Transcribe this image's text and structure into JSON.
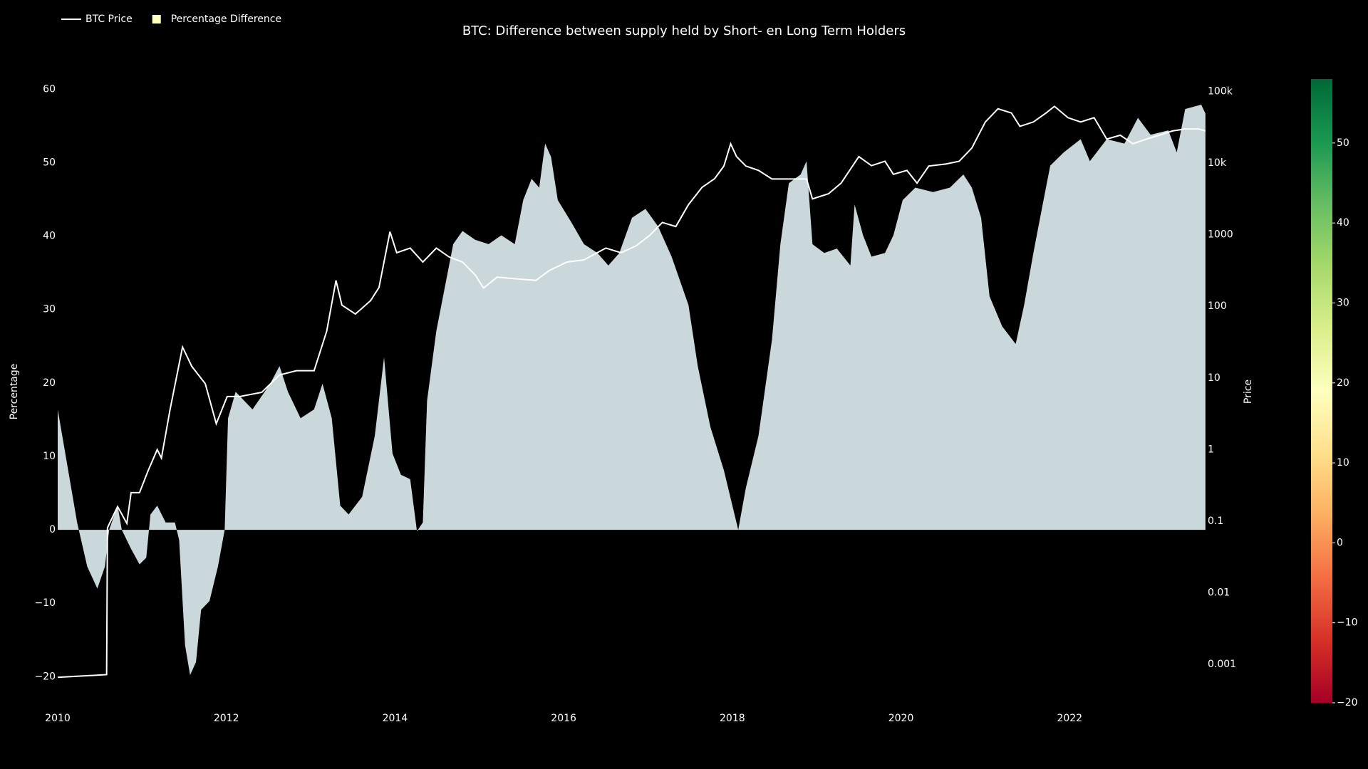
{
  "chart_data": {
    "type": "area_line",
    "title": "BTC: Difference between supply held by Short- en Long Term Holders",
    "y_label": "Percentage",
    "y2_label": "Price",
    "xlim": [
      2010,
      2023.62
    ],
    "xticks": [
      2010,
      2012,
      2014,
      2016,
      2018,
      2020,
      2022
    ],
    "ylim": [
      -22,
      61
    ],
    "yticks": [
      {
        "value": -20,
        "label": "−20"
      },
      {
        "value": -10,
        "label": "−10"
      },
      0,
      10,
      20,
      30,
      40,
      50,
      60
    ],
    "y2lim": [
      0.00042,
      136000
    ],
    "y2scale": "log",
    "y2ticks": [
      0.001,
      0.01,
      0.1,
      1,
      10,
      100,
      1000,
      {
        "value": 10000,
        "label": "10k"
      },
      {
        "value": 100000,
        "label": "100k"
      }
    ],
    "grid": false,
    "legend_position": "top-left",
    "colorbar": {
      "range": [
        -20,
        58
      ],
      "ticks": [
        {
          "value": -20,
          "label": "−20"
        },
        {
          "value": -10,
          "label": "−10"
        },
        0,
        10,
        20,
        30,
        40,
        50
      ],
      "colors": [
        "#a50026",
        "#d73027",
        "#f46d43",
        "#fdae61",
        "#fee08b",
        "#ffffbf",
        "#d9ef8b",
        "#a6d96a",
        "#66bd63",
        "#1a9850",
        "#006837"
      ]
    },
    "series": [
      {
        "name": "Percentage Difference",
        "color": "#d5e4e7",
        "legend_color": "#ffffc0",
        "x": [
          2010.0,
          2010.09,
          2010.23,
          2010.35,
          2010.47,
          2010.56,
          2010.61,
          2010.71,
          2010.76,
          2010.87,
          2010.97,
          2011.05,
          2011.1,
          2011.18,
          2011.28,
          2011.39,
          2011.44,
          2011.51,
          2011.57,
          2011.64,
          2011.7,
          2011.8,
          2011.9,
          2011.98,
          2012.02,
          2012.11,
          2012.31,
          2012.52,
          2012.63,
          2012.73,
          2012.88,
          2013.04,
          2013.14,
          2013.25,
          2013.35,
          2013.45,
          2013.61,
          2013.76,
          2013.87,
          2013.97,
          2014.07,
          2014.18,
          2014.26,
          2014.33,
          2014.38,
          2014.49,
          2014.59,
          2014.69,
          2014.8,
          2014.95,
          2015.11,
          2015.26,
          2015.42,
          2015.52,
          2015.62,
          2015.71,
          2015.78,
          2015.85,
          2015.93,
          2016.09,
          2016.24,
          2016.4,
          2016.53,
          2016.66,
          2016.81,
          2016.97,
          2017.12,
          2017.28,
          2017.48,
          2017.59,
          2017.74,
          2017.9,
          2018.07,
          2018.16,
          2018.31,
          2018.47,
          2018.57,
          2018.67,
          2018.81,
          2018.88,
          2018.95,
          2019.09,
          2019.24,
          2019.4,
          2019.45,
          2019.55,
          2019.65,
          2019.81,
          2019.91,
          2020.02,
          2020.17,
          2020.38,
          2020.58,
          2020.74,
          2020.84,
          2020.95,
          2021.05,
          2021.2,
          2021.36,
          2021.46,
          2021.57,
          2021.67,
          2021.77,
          2021.93,
          2022.13,
          2022.24,
          2022.44,
          2022.65,
          2022.81,
          2022.96,
          2023.17,
          2023.27,
          2023.37,
          2023.56,
          2023.61
        ],
        "values": [
          16.4,
          10.4,
          1,
          -5,
          -8,
          -5,
          0,
          3.3,
          0,
          -2.6,
          -4.7,
          -3.8,
          2.1,
          3.3,
          1,
          1,
          -1.4,
          -15.7,
          -19.8,
          -18,
          -10.9,
          -9.7,
          -5,
          0,
          15.2,
          18.8,
          16.4,
          19.9,
          22.3,
          18.8,
          15.2,
          16.4,
          19.9,
          15.2,
          3.3,
          2.1,
          4.5,
          12.8,
          23.5,
          10.4,
          7.5,
          6.9,
          -0.2,
          1,
          17.6,
          27.1,
          33,
          38.9,
          40.7,
          39.5,
          38.9,
          40.1,
          38.9,
          44.9,
          47.8,
          46.6,
          52.6,
          50.8,
          44.9,
          41.9,
          38.9,
          37.7,
          36,
          37.7,
          42.5,
          43.7,
          41.3,
          37.2,
          30.6,
          22.3,
          14,
          8.1,
          0,
          5.7,
          12.8,
          25.9,
          38.9,
          47.2,
          48.4,
          50.2,
          38.9,
          37.7,
          38.3,
          36,
          44.3,
          40.1,
          37.2,
          37.7,
          40.1,
          44.9,
          46.6,
          46,
          46.6,
          48.4,
          46.6,
          42.5,
          31.8,
          27.7,
          25.3,
          30.6,
          37.7,
          43.7,
          49.6,
          51.4,
          53.2,
          50.2,
          53.2,
          52.6,
          56.1,
          53.8,
          54.4,
          51.4,
          57.3,
          57.9,
          56.7
        ]
      },
      {
        "name": "BTC Price",
        "color": "#ffffff",
        "axis": "y2",
        "x": [
          2010.0,
          2010.58,
          2010.59,
          2010.71,
          2010.82,
          2010.87,
          2010.97,
          2011.07,
          2011.18,
          2011.23,
          2011.33,
          2011.48,
          2011.59,
          2011.75,
          2011.88,
          2012.01,
          2012.16,
          2012.42,
          2012.63,
          2012.83,
          2013.04,
          2013.19,
          2013.3,
          2013.37,
          2013.53,
          2013.71,
          2013.81,
          2013.94,
          2014.02,
          2014.18,
          2014.33,
          2014.49,
          2014.64,
          2014.8,
          2014.95,
          2015.05,
          2015.21,
          2015.47,
          2015.67,
          2015.83,
          2016.04,
          2016.24,
          2016.5,
          2016.68,
          2016.86,
          2017.02,
          2017.17,
          2017.33,
          2017.48,
          2017.64,
          2017.79,
          2017.9,
          2017.98,
          2018.05,
          2018.16,
          2018.31,
          2018.47,
          2018.67,
          2018.88,
          2018.95,
          2019.14,
          2019.29,
          2019.5,
          2019.65,
          2019.81,
          2019.91,
          2020.07,
          2020.19,
          2020.33,
          2020.53,
          2020.69,
          2020.84,
          2021.0,
          2021.15,
          2021.31,
          2021.41,
          2021.57,
          2021.72,
          2021.82,
          2021.98,
          2022.13,
          2022.29,
          2022.44,
          2022.6,
          2022.75,
          2022.91,
          2023.06,
          2023.22,
          2023.37,
          2023.53,
          2023.61
        ],
        "values": [
          0.00066,
          0.00072,
          0.081,
          0.16,
          0.093,
          0.25,
          0.25,
          0.5,
          1.0,
          0.76,
          3.5,
          27,
          14.5,
          8.3,
          2.3,
          5.5,
          5.5,
          6.3,
          11,
          12.6,
          12.6,
          45,
          230,
          104,
          78,
          120,
          183,
          1100,
          560,
          650,
          415,
          650,
          490,
          415,
          275,
          180,
          255,
          240,
          230,
          316,
          415,
          445,
          650,
          560,
          700,
          980,
          1480,
          1300,
          2630,
          4570,
          6060,
          9100,
          18600,
          12300,
          9100,
          7900,
          6000,
          6000,
          6000,
          3160,
          3730,
          5250,
          12300,
          9200,
          10600,
          6970,
          7900,
          5250,
          9100,
          9700,
          10600,
          16200,
          37500,
          57300,
          50000,
          32600,
          37500,
          50000,
          61900,
          43000,
          37500,
          43000,
          21600,
          24500,
          18600,
          21600,
          24500,
          28100,
          29900,
          29900,
          28100
        ]
      }
    ]
  }
}
